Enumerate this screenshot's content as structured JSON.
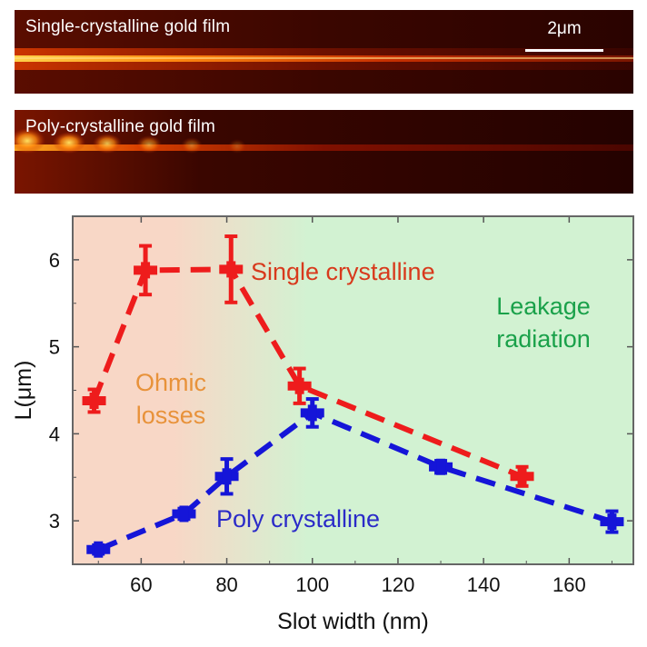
{
  "panels": {
    "top_label": "Single-crystalline gold film",
    "bottom_label": "Poly-crystalline gold film",
    "scale_bar": "2μm"
  },
  "colors": {
    "single": "#ee1c1c",
    "poly": "#1515d8",
    "ohmic_bg": "#f8d7c6",
    "leakage_bg": "#d2f2d2",
    "ohmic_text": "#e8923a",
    "leakage_text": "#1aa14a",
    "single_text": "#d8391c",
    "poly_text": "#2b2bc8"
  },
  "chart_data": {
    "type": "line",
    "xlabel": "Slot width (nm)",
    "ylabel": "L(μm)",
    "xlim": [
      44,
      175
    ],
    "ylim": [
      2.5,
      6.5
    ],
    "xticks": [
      60,
      80,
      100,
      120,
      140,
      160
    ],
    "yticks": [
      3,
      4,
      5,
      6
    ],
    "grid": false,
    "series": [
      {
        "name": "Single crystalline",
        "x": [
          49,
          61,
          81,
          97,
          149
        ],
        "y": [
          4.38,
          5.88,
          5.89,
          4.55,
          3.51
        ],
        "err": [
          0.13,
          0.28,
          0.38,
          0.2,
          0.11
        ]
      },
      {
        "name": "Poly crystalline",
        "x": [
          50,
          70,
          80,
          100,
          130,
          170
        ],
        "y": [
          2.67,
          3.08,
          3.51,
          4.24,
          3.62,
          2.99
        ],
        "err": [
          0.05,
          0.06,
          0.2,
          0.16,
          0.07,
          0.12
        ]
      }
    ],
    "annotations": {
      "ohmic": [
        "Ohmic",
        "losses"
      ],
      "leakage": [
        "Leakage",
        "radiation"
      ],
      "single": "Single crystalline",
      "poly": "Poly crystalline"
    }
  }
}
